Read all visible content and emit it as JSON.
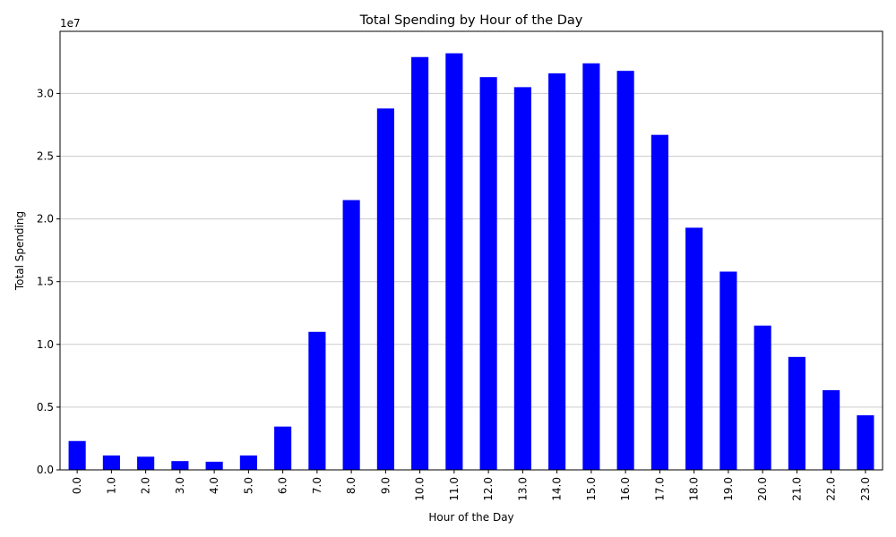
{
  "chart_data": {
    "type": "bar",
    "title": "Total Spending by Hour of the Day",
    "xlabel": "Hour of the Day",
    "ylabel": "Total Spending",
    "y_offset_label": "1e7",
    "categories": [
      "0.0",
      "1.0",
      "2.0",
      "3.0",
      "4.0",
      "5.0",
      "6.0",
      "7.0",
      "8.0",
      "9.0",
      "10.0",
      "11.0",
      "12.0",
      "13.0",
      "14.0",
      "15.0",
      "16.0",
      "17.0",
      "18.0",
      "19.0",
      "20.0",
      "21.0",
      "22.0",
      "23.0"
    ],
    "values": [
      2300000,
      1150000,
      1050000,
      700000,
      650000,
      1150000,
      3450000,
      11000000,
      21500000,
      28800000,
      32900000,
      33200000,
      31300000,
      30500000,
      31600000,
      32400000,
      31800000,
      26700000,
      19300000,
      15800000,
      11500000,
      9000000,
      6350000,
      4350000
    ],
    "yticks": [
      0,
      5000000,
      10000000,
      15000000,
      20000000,
      25000000,
      30000000
    ],
    "ytick_labels": [
      "0.0",
      "0.5",
      "1.0",
      "1.5",
      "2.0",
      "2.5",
      "3.0"
    ],
    "ylim": [
      0,
      34950000
    ],
    "grid": "y",
    "bar_color": "#0000ff"
  }
}
